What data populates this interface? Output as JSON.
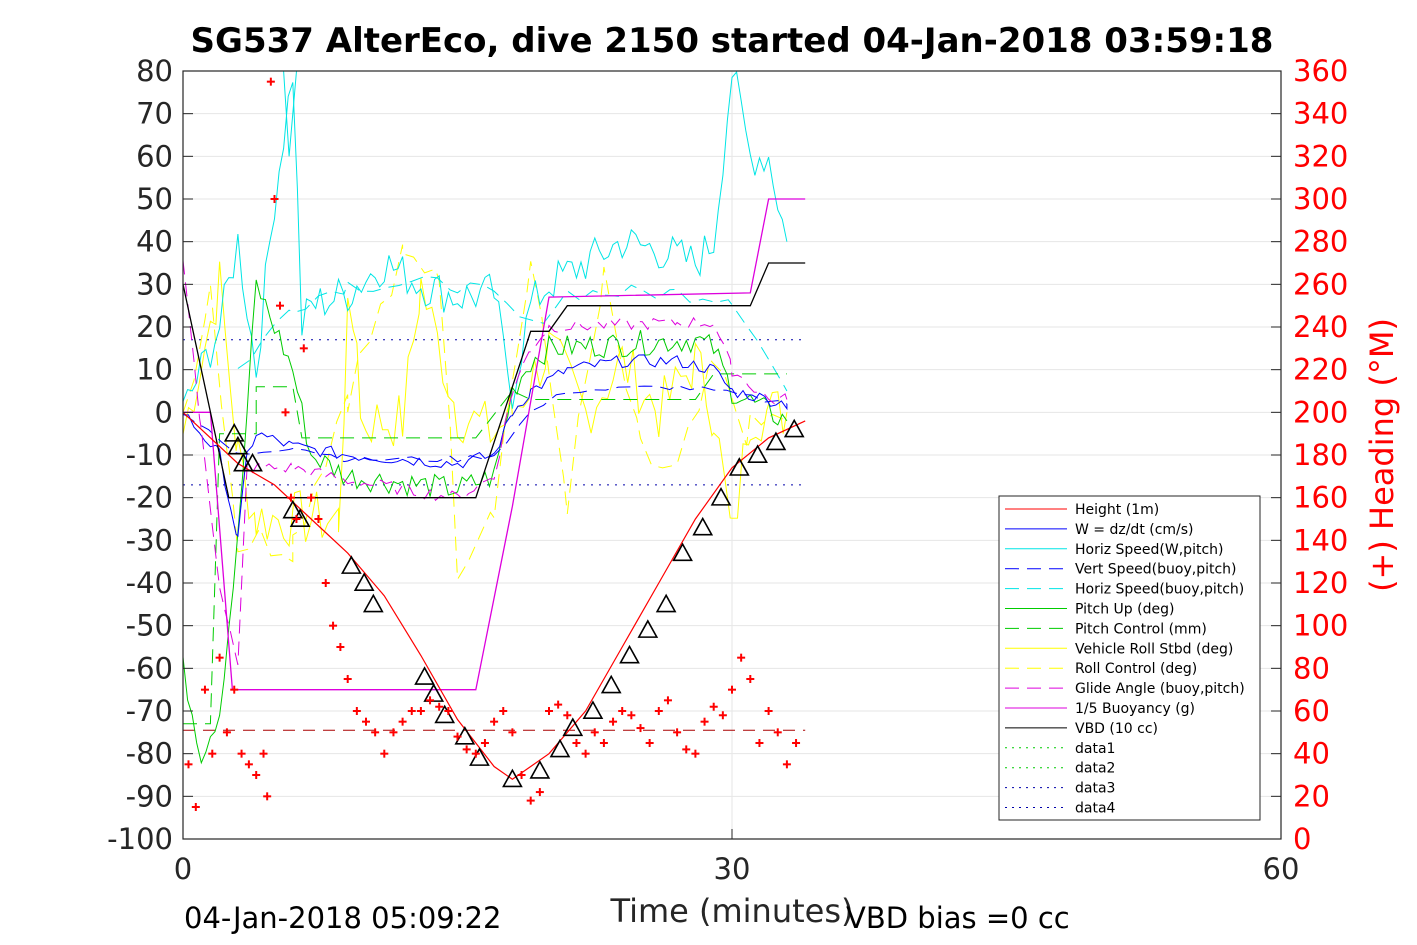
{
  "chart_data": {
    "type": "line",
    "title": "SG537 AlterEco, dive 2150 started 04-Jan-2018 03:59:18",
    "xlabel": "Time (minutes)",
    "ylabel_right": "(+) Heading (°M)",
    "xlim": [
      0,
      60
    ],
    "ylim_left": [
      -100,
      80
    ],
    "ylim_right": [
      0,
      360
    ],
    "x_ticks": [
      "0",
      "30",
      "60"
    ],
    "y_ticks_left": [
      "80",
      "70",
      "60",
      "50",
      "40",
      "30",
      "20",
      "10",
      "0",
      "-10",
      "-20",
      "-30",
      "-40",
      "-50",
      "-60",
      "-70",
      "-80",
      "-90",
      "-100"
    ],
    "y_ticks_right": [
      "360",
      "340",
      "320",
      "300",
      "280",
      "260",
      "240",
      "220",
      "200",
      "180",
      "160",
      "140",
      "120",
      "100",
      "80",
      "60",
      "40",
      "20",
      "0"
    ],
    "grid": true,
    "legend_position": "lower-right",
    "footer_left": "04-Jan-2018 05:09:22",
    "footer_right": "VBD bias =0 cc",
    "colors": {
      "red": "#ff0000",
      "blue": "#0000ff",
      "cyan": "#00e5e5",
      "green": "#00cc00",
      "yellow": "#ffff00",
      "magenta": "#dd00dd",
      "black": "#000000"
    },
    "legend": [
      {
        "label": "Height (1m)",
        "color": "#ff0000",
        "style": "solid"
      },
      {
        "label": "W = dz/dt (cm/s)",
        "color": "#0000ff",
        "style": "solid"
      },
      {
        "label": "Horiz Speed(W,pitch)",
        "color": "#00e5e5",
        "style": "solid"
      },
      {
        "label": "Vert Speed(buoy,pitch)",
        "color": "#0000ff",
        "style": "dashed"
      },
      {
        "label": "Horiz Speed(buoy,pitch)",
        "color": "#00e5e5",
        "style": "dashed"
      },
      {
        "label": "Pitch Up (deg)",
        "color": "#00cc00",
        "style": "solid"
      },
      {
        "label": "Pitch Control (mm)",
        "color": "#00cc00",
        "style": "dashed"
      },
      {
        "label": "Vehicle Roll Stbd (deg)",
        "color": "#ffff00",
        "style": "solid"
      },
      {
        "label": "Roll Control (deg)",
        "color": "#ffff00",
        "style": "dashed"
      },
      {
        "label": "Glide Angle (buoy,pitch)",
        "color": "#dd00dd",
        "style": "dashed"
      },
      {
        "label": "1/5 Buoyancy (g)",
        "color": "#dd00dd",
        "style": "solid"
      },
      {
        "label": "VBD (10 cc)",
        "color": "#000000",
        "style": "solid"
      },
      {
        "label": "data1",
        "color": "#00cc00",
        "style": "dotted"
      },
      {
        "label": "data2",
        "color": "#00cc00",
        "style": "dotted"
      },
      {
        "label": "data3",
        "color": "#0000aa",
        "style": "dotted"
      },
      {
        "label": "data4",
        "color": "#0000aa",
        "style": "dotted"
      }
    ],
    "series": [
      {
        "key": "depth",
        "color": "#ff0000",
        "style": "solid",
        "x": [
          0,
          3,
          5,
          7,
          9,
          11,
          13,
          15,
          17,
          18,
          20,
          22,
          24,
          26,
          28,
          30,
          32,
          34
        ],
        "y": [
          0,
          -12,
          -17,
          -25,
          -33,
          -43,
          -57,
          -72,
          -83,
          -86,
          -80,
          -70,
          -55,
          -40,
          -25,
          -13,
          -6,
          -2
        ]
      },
      {
        "key": "depth-markers",
        "color": "#000000",
        "style": "markers",
        "x": [
          2.8,
          3.0,
          3.3,
          3.8,
          6.0,
          6.4,
          9.2,
          9.9,
          10.4,
          13.2,
          13.7,
          14.3,
          15.4,
          16.2,
          18.0,
          19.5,
          20.6,
          21.3,
          22.4,
          23.4,
          24.4,
          25.4,
          26.4,
          27.3,
          28.4,
          29.4,
          30.4,
          31.4,
          32.4,
          33.4
        ],
        "y": [
          -5,
          -8,
          -12,
          -12,
          -23,
          -25,
          -36,
          -40,
          -45,
          -62,
          -66,
          -71,
          -76,
          -81,
          -86,
          -84,
          -79,
          -74,
          -70,
          -64,
          -57,
          -51,
          -45,
          -33,
          -27,
          -20,
          -13,
          -10,
          -7,
          -4
        ]
      },
      {
        "key": "heading",
        "color": "#ff0000",
        "style": "plus",
        "axis": "right",
        "x": [
          0.3,
          0.7,
          1.2,
          1.6,
          2.0,
          2.4,
          2.8,
          3.2,
          3.6,
          4.0,
          4.4,
          4.6,
          4.8,
          5.0,
          5.3,
          5.6,
          5.9,
          6.2,
          6.6,
          7.0,
          7.4,
          7.8,
          8.2,
          8.6,
          9.0,
          9.5,
          10.0,
          10.5,
          11.0,
          11.5,
          12.0,
          12.5,
          13.0,
          13.5,
          14.0,
          14.5,
          15.0,
          15.5,
          16.0,
          16.5,
          17.0,
          17.5,
          18.0,
          18.5,
          19.0,
          19.5,
          20.0,
          20.5,
          21.0,
          21.5,
          22.0,
          22.5,
          23.0,
          23.5,
          24.0,
          24.5,
          25.0,
          25.5,
          26.0,
          26.5,
          27.0,
          27.5,
          28.0,
          28.5,
          29.0,
          29.5,
          30.0,
          30.5,
          31.0,
          31.5,
          32.0,
          32.5,
          33.0,
          33.5
        ],
        "y": [
          35,
          15,
          70,
          40,
          85,
          50,
          70,
          40,
          35,
          30,
          40,
          20,
          355,
          300,
          250,
          200,
          160,
          150,
          230,
          160,
          150,
          120,
          100,
          90,
          75,
          60,
          55,
          50,
          40,
          50,
          55,
          60,
          60,
          65,
          62,
          60,
          48,
          42,
          40,
          45,
          55,
          60,
          50,
          30,
          18,
          22,
          60,
          63,
          58,
          45,
          40,
          50,
          45,
          55,
          60,
          58,
          52,
          45,
          60,
          65,
          50,
          42,
          40,
          55,
          62,
          58,
          70,
          85,
          75,
          45,
          60,
          50,
          35,
          45
        ]
      }
    ]
  }
}
